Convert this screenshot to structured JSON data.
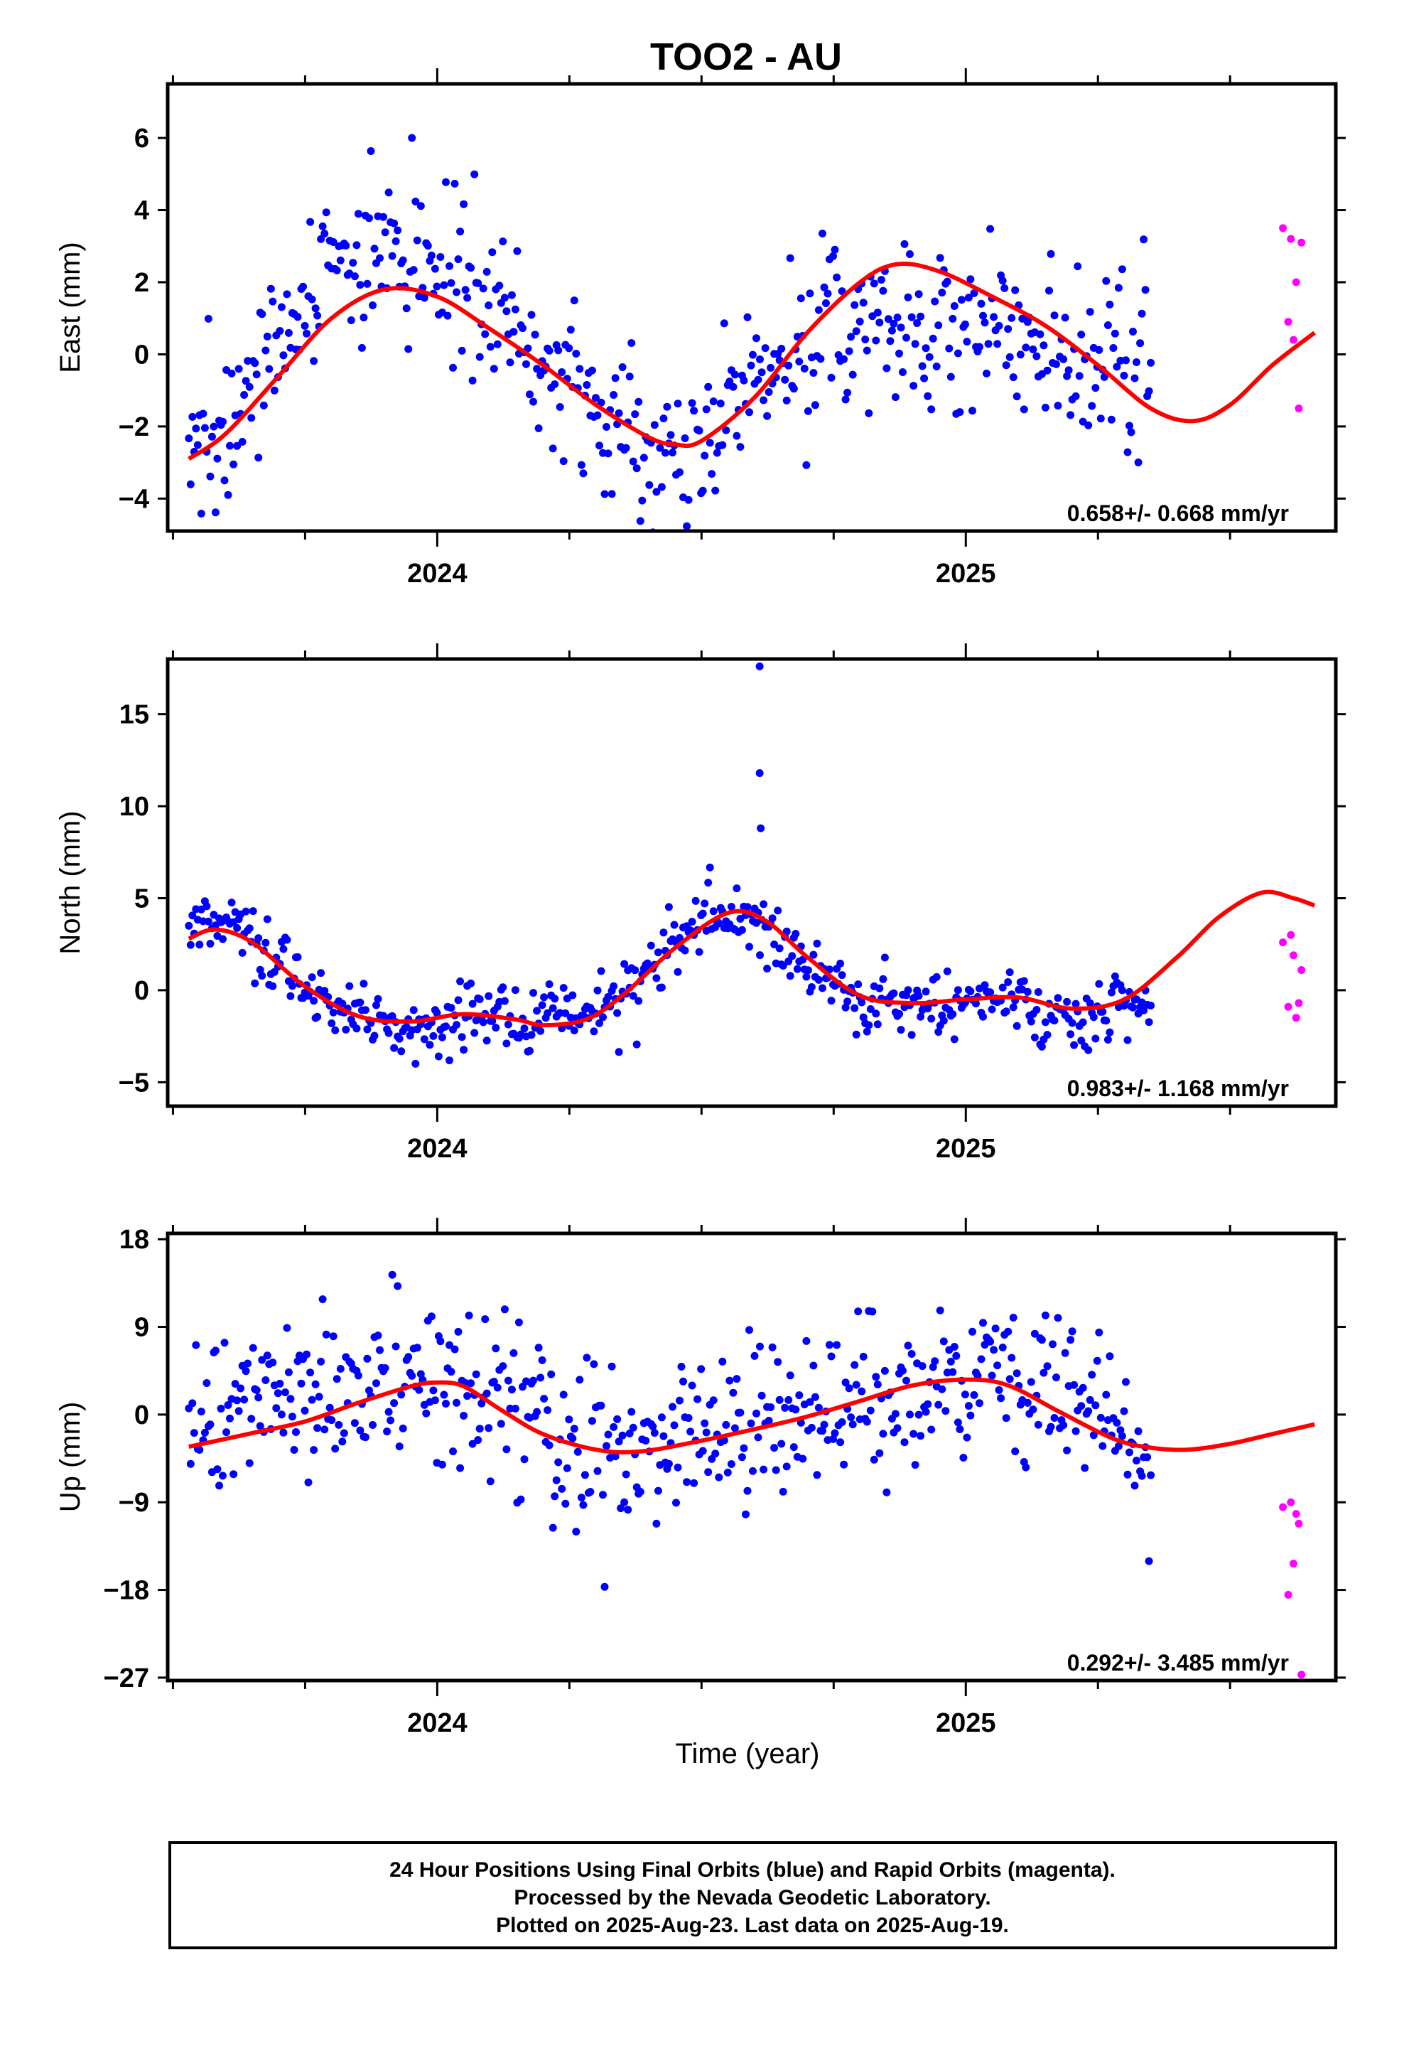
{
  "title": "TOO2 - AU",
  "xlabel": "Time (year)",
  "footer": {
    "line1": "24 Hour Positions Using Final Orbits (blue) and Rapid Orbits (magenta).",
    "line2": "Processed by the Nevada Geodetic Laboratory.",
    "line3": "Plotted on 2025-Aug-23. Last data on 2025-Aug-19."
  },
  "colors": {
    "final_orbits": "#0000ff",
    "rapid_orbits": "#ff00ff",
    "model_fit": "#ff0000",
    "frame": "#000000"
  },
  "chart_data": [
    {
      "type": "scatter",
      "component": "east",
      "ylabel": "East (mm)",
      "rate_text": "0.658+/- 0.668 mm/yr",
      "xlim": [
        2023.49,
        2025.7
      ],
      "ylim": [
        -4.9,
        7.5
      ],
      "yticks": [
        -4,
        -2,
        0,
        2,
        4,
        6
      ],
      "ytick_labels": [
        "−4",
        "−2",
        "0",
        "2",
        "4",
        "6"
      ],
      "xticks_major": [
        2024,
        2025
      ],
      "xticks_minor": [
        2023.5,
        2023.75,
        2024.25,
        2024.5,
        2024.75,
        2025.25,
        2025.5
      ],
      "final_x_range": [
        2023.53,
        2025.35
      ],
      "rapid_orbit_points": [
        [
          2025.6,
          3.5
        ],
        [
          2025.61,
          0.9
        ],
        [
          2025.615,
          3.2
        ],
        [
          2025.62,
          0.4
        ],
        [
          2025.625,
          2.0
        ],
        [
          2025.63,
          -1.5
        ],
        [
          2025.635,
          3.1
        ]
      ],
      "fit_curve": [
        [
          2023.53,
          -2.9
        ],
        [
          2023.6,
          -2.2
        ],
        [
          2023.7,
          -0.6
        ],
        [
          2023.8,
          1.0
        ],
        [
          2023.9,
          1.8
        ],
        [
          2024.0,
          1.6
        ],
        [
          2024.1,
          0.7
        ],
        [
          2024.2,
          -0.3
        ],
        [
          2024.3,
          -1.4
        ],
        [
          2024.4,
          -2.3
        ],
        [
          2024.45,
          -2.5
        ],
        [
          2024.5,
          -2.4
        ],
        [
          2024.6,
          -1.2
        ],
        [
          2024.7,
          0.6
        ],
        [
          2024.8,
          2.0
        ],
        [
          2024.87,
          2.5
        ],
        [
          2024.95,
          2.3
        ],
        [
          2025.05,
          1.6
        ],
        [
          2025.15,
          0.8
        ],
        [
          2025.25,
          -0.3
        ],
        [
          2025.35,
          -1.5
        ],
        [
          2025.43,
          -1.85
        ],
        [
          2025.5,
          -1.4
        ],
        [
          2025.58,
          -0.3
        ],
        [
          2025.66,
          0.6
        ]
      ],
      "final_cluster_centers": [
        [
          2023.53,
          -3.0
        ],
        [
          2023.6,
          -1.8
        ],
        [
          2023.7,
          0.0
        ],
        [
          2023.8,
          2.5
        ],
        [
          2023.9,
          3.0
        ],
        [
          2024.0,
          2.0
        ],
        [
          2024.1,
          1.2
        ],
        [
          2024.2,
          -0.3
        ],
        [
          2024.3,
          -1.4
        ],
        [
          2024.4,
          -2.8
        ],
        [
          2024.47,
          -3.2
        ],
        [
          2024.55,
          -1.5
        ],
        [
          2024.65,
          -0.3
        ],
        [
          2024.75,
          0.8
        ],
        [
          2024.85,
          0.8
        ],
        [
          2024.95,
          0.6
        ],
        [
          2025.05,
          0.8
        ],
        [
          2025.15,
          0.2
        ],
        [
          2025.25,
          -0.3
        ],
        [
          2025.35,
          -0.5
        ]
      ]
    },
    {
      "type": "scatter",
      "component": "north",
      "ylabel": "North (mm)",
      "rate_text": "0.983+/- 1.168 mm/yr",
      "xlim": [
        2023.49,
        2025.7
      ],
      "ylim": [
        -6.3,
        18.0
      ],
      "yticks": [
        -5,
        0,
        5,
        10,
        15
      ],
      "ytick_labels": [
        "−5",
        "0",
        "5",
        "10",
        "15"
      ],
      "xticks_major": [
        2024,
        2025
      ],
      "xticks_minor": [
        2023.5,
        2023.75,
        2024.25,
        2024.5,
        2024.75,
        2025.25,
        2025.5
      ],
      "final_x_range": [
        2023.53,
        2025.35
      ],
      "rapid_orbit_points": [
        [
          2025.6,
          2.6
        ],
        [
          2025.61,
          -0.9
        ],
        [
          2025.615,
          3.0
        ],
        [
          2025.62,
          1.9
        ],
        [
          2025.625,
          -1.5
        ],
        [
          2025.63,
          -0.7
        ],
        [
          2025.635,
          1.1
        ]
      ],
      "outliers": [
        [
          2024.61,
          17.6
        ],
        [
          2024.61,
          11.8
        ],
        [
          2024.612,
          8.8
        ]
      ],
      "fit_curve": [
        [
          2023.53,
          2.8
        ],
        [
          2023.58,
          3.3
        ],
        [
          2023.65,
          2.6
        ],
        [
          2023.75,
          0.2
        ],
        [
          2023.85,
          -1.4
        ],
        [
          2023.95,
          -1.7
        ],
        [
          2024.05,
          -1.3
        ],
        [
          2024.15,
          -1.6
        ],
        [
          2024.2,
          -1.9
        ],
        [
          2024.28,
          -1.6
        ],
        [
          2024.35,
          -0.3
        ],
        [
          2024.45,
          2.3
        ],
        [
          2024.55,
          4.2
        ],
        [
          2024.62,
          3.8
        ],
        [
          2024.7,
          1.8
        ],
        [
          2024.8,
          -0.3
        ],
        [
          2024.9,
          -0.7
        ],
        [
          2025.0,
          -0.5
        ],
        [
          2025.1,
          -0.4
        ],
        [
          2025.2,
          -1.0
        ],
        [
          2025.3,
          -0.5
        ],
        [
          2025.4,
          1.8
        ],
        [
          2025.48,
          4.0
        ],
        [
          2025.56,
          5.3
        ],
        [
          2025.62,
          5.0
        ],
        [
          2025.66,
          4.6
        ]
      ],
      "final_cluster_centers": [
        [
          2023.53,
          3.0
        ],
        [
          2023.6,
          3.5
        ],
        [
          2023.7,
          1.5
        ],
        [
          2023.8,
          -1.0
        ],
        [
          2023.9,
          -2.0
        ],
        [
          2024.0,
          -1.8
        ],
        [
          2024.1,
          -1.3
        ],
        [
          2024.2,
          -1.8
        ],
        [
          2024.3,
          -1.2
        ],
        [
          2024.4,
          1.0
        ],
        [
          2024.5,
          4.0
        ],
        [
          2024.6,
          4.0
        ],
        [
          2024.7,
          1.5
        ],
        [
          2024.8,
          -0.8
        ],
        [
          2024.9,
          -1.0
        ],
        [
          2025.0,
          -0.5
        ],
        [
          2025.1,
          -0.8
        ],
        [
          2025.2,
          -1.8
        ],
        [
          2025.3,
          -0.8
        ]
      ]
    },
    {
      "type": "scatter",
      "component": "up",
      "ylabel": "Up (mm)",
      "rate_text": "0.292+/- 3.485 mm/yr",
      "xlim": [
        2023.49,
        2025.7
      ],
      "ylim": [
        -27.3,
        18.6
      ],
      "yticks": [
        -27,
        -18,
        -9,
        0,
        9,
        18
      ],
      "ytick_labels": [
        "−27",
        "−18",
        "−9",
        "0",
        "9",
        "18"
      ],
      "xticks_major": [
        2024,
        2025
      ],
      "xticks_minor": [
        2023.5,
        2023.75,
        2024.25,
        2024.5,
        2024.75,
        2025.25,
        2025.5
      ],
      "final_x_range": [
        2023.53,
        2025.35
      ],
      "rapid_orbit_points": [
        [
          2025.6,
          -9.5
        ],
        [
          2025.61,
          -18.5
        ],
        [
          2025.615,
          -9.0
        ],
        [
          2025.62,
          -15.3
        ],
        [
          2025.625,
          -10.2
        ],
        [
          2025.63,
          -11.2
        ],
        [
          2025.635,
          -26.7
        ]
      ],
      "fit_curve": [
        [
          2023.53,
          -3.3
        ],
        [
          2023.65,
          -1.9
        ],
        [
          2023.75,
          -0.7
        ],
        [
          2023.85,
          1.2
        ],
        [
          2023.95,
          2.9
        ],
        [
          2024.0,
          3.3
        ],
        [
          2024.05,
          2.9
        ],
        [
          2024.12,
          0.5
        ],
        [
          2024.2,
          -2.0
        ],
        [
          2024.3,
          -3.6
        ],
        [
          2024.38,
          -3.8
        ],
        [
          2024.48,
          -2.9
        ],
        [
          2024.6,
          -1.5
        ],
        [
          2024.7,
          -0.2
        ],
        [
          2024.8,
          1.4
        ],
        [
          2024.9,
          3.0
        ],
        [
          2025.0,
          3.6
        ],
        [
          2025.08,
          3.0
        ],
        [
          2025.18,
          0.2
        ],
        [
          2025.28,
          -2.5
        ],
        [
          2025.35,
          -3.4
        ],
        [
          2025.42,
          -3.6
        ],
        [
          2025.5,
          -3.0
        ],
        [
          2025.58,
          -2.0
        ],
        [
          2025.66,
          -1.0
        ]
      ],
      "final_cluster_centers": [
        [
          2023.53,
          -1.0
        ],
        [
          2023.6,
          0.0
        ],
        [
          2023.7,
          2.0
        ],
        [
          2023.8,
          3.0
        ],
        [
          2023.9,
          4.0
        ],
        [
          2024.0,
          5.0
        ],
        [
          2024.08,
          4.0
        ],
        [
          2024.15,
          0.0
        ],
        [
          2024.25,
          -1.5
        ],
        [
          2024.35,
          -3.5
        ],
        [
          2024.45,
          -2.5
        ],
        [
          2024.55,
          -1.5
        ],
        [
          2024.65,
          -1.5
        ],
        [
          2024.75,
          1.0
        ],
        [
          2024.85,
          1.0
        ],
        [
          2024.95,
          3.0
        ],
        [
          2025.05,
          5.0
        ],
        [
          2025.15,
          3.0
        ],
        [
          2025.25,
          1.0
        ],
        [
          2025.33,
          -5.0
        ]
      ]
    }
  ]
}
